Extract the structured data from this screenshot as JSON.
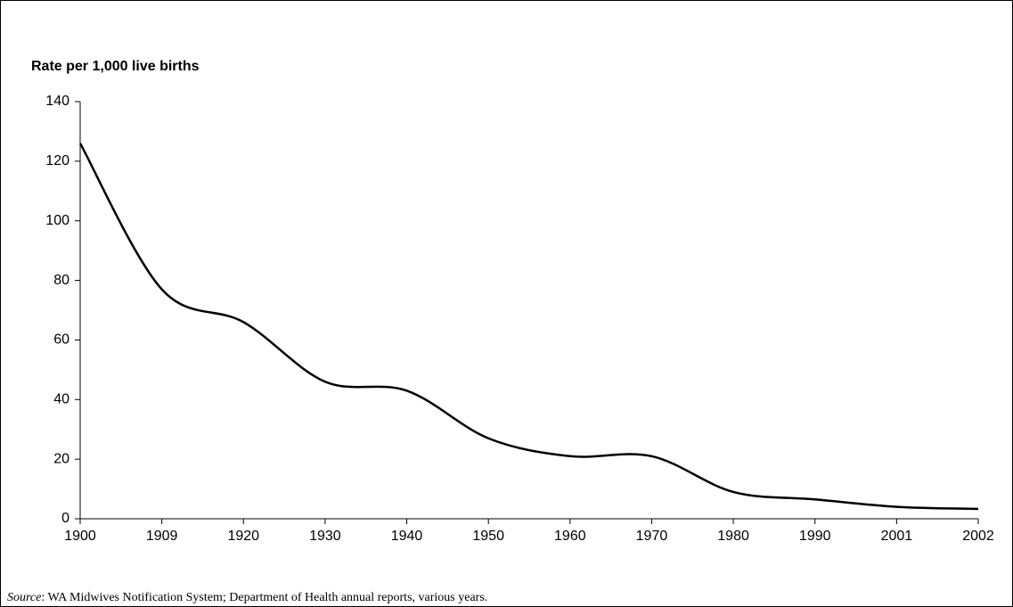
{
  "chart_data": {
    "type": "line",
    "y_label": "Rate per 1,000 live births",
    "categories": [
      "1900",
      "1909",
      "1920",
      "1930",
      "1940",
      "1950",
      "1960",
      "1970",
      "1980",
      "1990",
      "2001",
      "2002"
    ],
    "values": [
      126,
      77,
      66,
      46,
      43,
      27,
      21,
      21,
      9,
      6.5,
      4,
      3.3
    ],
    "color": "#000000",
    "smooth": true,
    "ylim": [
      0,
      140
    ],
    "yticks": [
      0,
      20,
      40,
      60,
      80,
      100,
      120,
      140
    ],
    "source_label": "Source",
    "source_text": ":  WA Midwives Notification System; Department of Health annual reports, various years."
  }
}
